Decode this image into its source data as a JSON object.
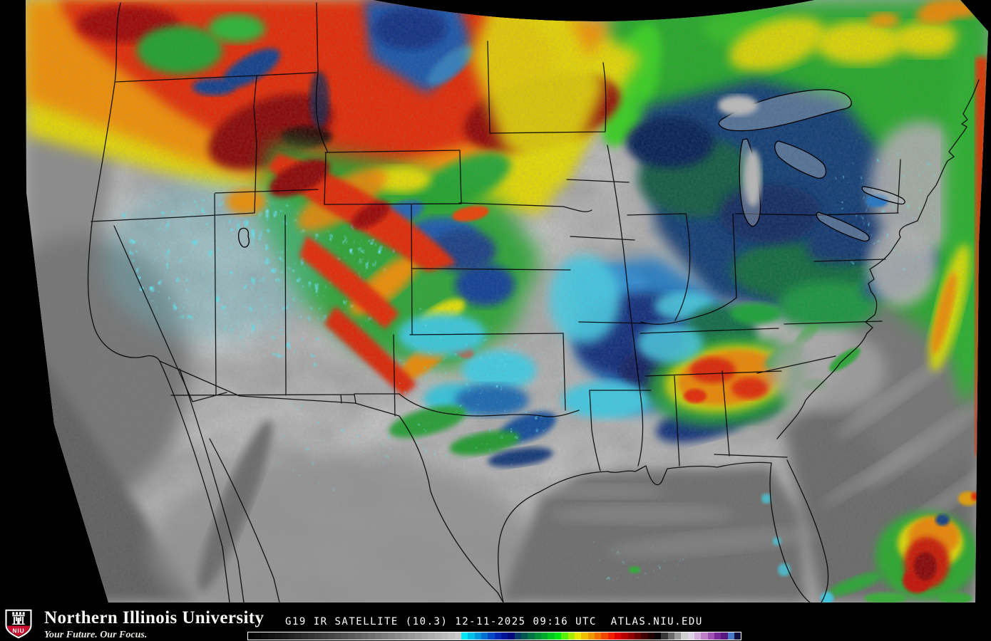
{
  "footer": {
    "logo": {
      "acronym": "NIU",
      "shield_red": "#c8102e"
    },
    "university_name": "Northern Illinois University",
    "tagline": "Your Future. Our Focus.",
    "caption": "G19 IR SATELLITE (10.3) 12-11-2025 09:16 UTC  ATLAS.NIU.EDU"
  },
  "colorbar": {
    "border_color": "#ffffff",
    "colors": [
      "#030303",
      "#080808",
      "#0d0d0d",
      "#121212",
      "#171717",
      "#1c1c1c",
      "#222222",
      "#282828",
      "#2e2e2e",
      "#343434",
      "#3a3a3a",
      "#404040",
      "#464646",
      "#4c4c4c",
      "#525252",
      "#595959",
      "#606060",
      "#676767",
      "#6e6e6e",
      "#757575",
      "#7c7c7c",
      "#838383",
      "#8a8a8a",
      "#919191",
      "#989898",
      "#9f9f9f",
      "#a6a6a6",
      "#adadad",
      "#b4b4b4",
      "#bbbbbb",
      "#c2c2c2",
      "#c9c9c9",
      "#00e8f4",
      "#00c0e8",
      "#0098dc",
      "#0070d0",
      "#0048c4",
      "#0028b0",
      "#001498",
      "#000a7c",
      "#003c64",
      "#005850",
      "#007444",
      "#009038",
      "#00ac2c",
      "#00c820",
      "#00e414",
      "#58f008",
      "#a8ec00",
      "#e8e800",
      "#f0c000",
      "#f09800",
      "#f07000",
      "#f04800",
      "#f02000",
      "#e00000",
      "#b80000",
      "#900000",
      "#680000",
      "#400000",
      "#200000",
      "#050505",
      "#383838",
      "#6a6a6a",
      "#9c9c9c",
      "#cfcfcf",
      "#e2d2e6",
      "#d4aeda",
      "#c080c8",
      "#a050b0",
      "#782898",
      "#581880",
      "#4878c8",
      "#101040"
    ]
  }
}
